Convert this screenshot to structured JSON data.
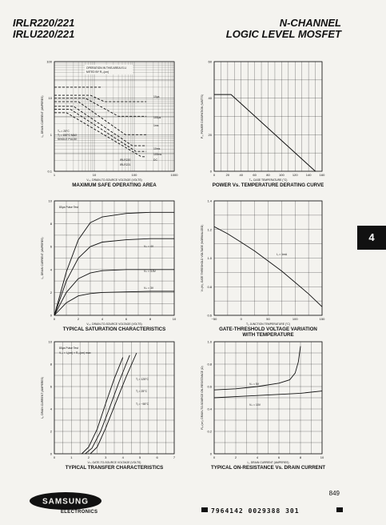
{
  "header": {
    "part_line1": "IRLR220/221",
    "part_line2": "IRLU220/221",
    "title_line1": "N-CHANNEL",
    "title_line2": "LOGIC LEVEL MOSFET"
  },
  "section_tab": "4",
  "page_number": "849",
  "footer": {
    "brand": "SAMSUNG",
    "division": "ELECTRONICS",
    "code": "7964142 0029388 301"
  },
  "colors": {
    "ink": "#111111",
    "paper": "#f4f3ef",
    "tab": "#111111"
  },
  "charts": {
    "soa": {
      "caption": "MAXIMUM SAFE OPERATING AREA",
      "xlabel": "V₀ₛ, DRAIN-TO-SOURCE VOLTAGE (VOLTS)",
      "ylabel": "I₀, DRAIN CURRENT (AMPERES)",
      "annotations": {
        "region": "OPERATION IN THIS AREA IS LIMITED BY R₀ₛ(on)",
        "conditions": [
          "Tₐ = 25°C",
          "Tⱼ = 150°C MAX",
          "SINGLE PULSE"
        ],
        "pulses": [
          "10μs",
          "100μs",
          "1ms",
          "10ms",
          "100ms",
          "DC"
        ],
        "parts": [
          "IRLR220",
          "IRLR221"
        ]
      }
    },
    "derating": {
      "caption": "POWER Vs. TEMPERATURE DERATING CURVE",
      "xlabel": "Tₐ, CASE TEMPERATURE (°C)",
      "ylabel": "P₀, POWER DISSIPATION (WATTS)"
    },
    "saturation": {
      "caption": "TYPICAL SATURATION CHARACTERISTICS",
      "xlabel": "V₀ₛ, DRAIN-TO-SOURCE VOLTAGE (VOLTS)",
      "ylabel": "I₀, DRAIN CURRENT (AMPERES)",
      "pulse_note": "80μs Pulse Test",
      "curve_labels": [
        "Vₗₛ = 4V",
        "Vₗₛ = 3.5V",
        "Vₗₛ = 3V"
      ]
    },
    "threshold": {
      "caption_line1": "GATE-THRESHOLD VOLTAGE VARIATION",
      "caption_line2": "WITH TEMPERATURE",
      "xlabel": "Tⱼ, JUNCTION TEMPERATURE (°C)",
      "ylabel": "Vₗₛ(th), GATE THRESHOLD VOLTAGE (NORMALIZED)",
      "curve_label": "I₀ = 1mA"
    },
    "transfer": {
      "caption": "TYPICAL TRANSFER CHARACTERISTICS",
      "xlabel": "Vₗₛ, GATE-TO-SOURCE VOLTAGE (VOLTS)",
      "ylabel": "I₀, DRAIN CURRENT (AMPERES)",
      "notes": [
        "80μs Pulse Test",
        "V₀ₛ = I₀(on) × R₀ₛ(on) max"
      ],
      "curve_labels": [
        "Tⱼ = 125°C",
        "Tⱼ = 25°C",
        "Tⱼ = −55°C"
      ]
    },
    "onres": {
      "caption": "TYPICAL ON-RESISTANCE Vs. DRAIN CURRENT",
      "xlabel": "I₀, DRAIN CURRENT (AMPERES)",
      "ylabel": "R₀ₛ(on), DRAIN-TO-SOURCE ON-RESISTANCE (Ω)",
      "curve_labels": [
        "Vₗₛ = 5V",
        "Vₗₛ = 10V"
      ]
    }
  },
  "chart_data": [
    {
      "type": "line",
      "id": "soa",
      "xscale": "log",
      "yscale": "log",
      "xlim": [
        1,
        1000
      ],
      "ylim": [
        0.1,
        100
      ],
      "xticks": [
        "1",
        "10",
        "100",
        "1000"
      ],
      "yticks": [
        "0.1",
        "1",
        "10",
        "100"
      ],
      "series": [
        {
          "name": "10μs",
          "x": [
            1,
            8,
            18,
            200
          ],
          "y": [
            12,
            12,
            8,
            8
          ]
        },
        {
          "name": "100μs",
          "x": [
            1,
            6,
            40,
            200
          ],
          "y": [
            10,
            10,
            3.2,
            3.2
          ]
        },
        {
          "name": "1ms",
          "x": [
            1,
            4,
            60,
            200
          ],
          "y": [
            8,
            8,
            1,
            1
          ]
        },
        {
          "name": "10ms",
          "x": [
            1,
            3,
            90,
            200
          ],
          "y": [
            6,
            6,
            0.5,
            0.5
          ]
        },
        {
          "name": "100ms",
          "x": [
            1,
            2.5,
            110,
            200
          ],
          "y": [
            5,
            5,
            0.35,
            0.35
          ]
        },
        {
          "name": "DC",
          "x": [
            1,
            2,
            150,
            200
          ],
          "y": [
            4,
            4,
            0.25,
            0.25
          ]
        }
      ]
    },
    {
      "type": "line",
      "id": "derating",
      "xlim": [
        0,
        160
      ],
      "ylim": [
        0,
        60
      ],
      "xticks": [
        "0",
        "20",
        "40",
        "60",
        "80",
        "100",
        "120",
        "140",
        "160"
      ],
      "yticks": [
        "0",
        "20",
        "40",
        "60"
      ],
      "series": [
        {
          "x": [
            0,
            20,
            25,
            150
          ],
          "y": [
            42,
            42,
            42,
            0
          ]
        }
      ]
    },
    {
      "type": "line",
      "id": "saturation",
      "xlim": [
        0,
        10
      ],
      "ylim": [
        0,
        10
      ],
      "xticks": [
        "0",
        "2",
        "4",
        "6",
        "8",
        "10"
      ],
      "yticks": [
        "0",
        "2",
        "4",
        "6",
        "8",
        "10"
      ],
      "series": [
        {
          "name": "5V",
          "x": [
            0,
            1,
            2,
            3,
            4,
            6,
            8,
            10
          ],
          "y": [
            0,
            3.8,
            6.6,
            8.1,
            8.6,
            8.9,
            9.0,
            9.0
          ]
        },
        {
          "name": "4V",
          "x": [
            0,
            1,
            2,
            3,
            4,
            6,
            8,
            10
          ],
          "y": [
            0,
            3.0,
            5.0,
            6.0,
            6.4,
            6.6,
            6.7,
            6.7
          ]
        },
        {
          "name": "3.5V",
          "x": [
            0,
            1,
            2,
            3,
            4,
            6,
            8,
            10
          ],
          "y": [
            0,
            2.0,
            3.2,
            3.7,
            3.9,
            4.0,
            4.0,
            4.0
          ]
        },
        {
          "name": "3V",
          "x": [
            0,
            1,
            2,
            3,
            4,
            6,
            8,
            10
          ],
          "y": [
            0,
            1.1,
            1.7,
            1.9,
            2.0,
            2.05,
            2.1,
            2.1
          ]
        }
      ]
    },
    {
      "type": "line",
      "id": "threshold",
      "xlim": [
        -50,
        150
      ],
      "ylim": [
        0.6,
        1.4
      ],
      "xticks": [
        "−50",
        "0",
        "50",
        "100",
        "150"
      ],
      "yticks": [
        "0.6",
        "0.8",
        "1.0",
        "1.2",
        "1.4"
      ],
      "series": [
        {
          "x": [
            -50,
            -25,
            0,
            25,
            50,
            75,
            100,
            125,
            150
          ],
          "y": [
            1.22,
            1.17,
            1.11,
            1.05,
            0.98,
            0.91,
            0.83,
            0.75,
            0.66
          ]
        }
      ]
    },
    {
      "type": "line",
      "id": "transfer",
      "xlim": [
        0,
        7
      ],
      "ylim": [
        0,
        10
      ],
      "xticks": [
        "0",
        "1",
        "2",
        "3",
        "4",
        "5",
        "6",
        "7"
      ],
      "yticks": [
        "0",
        "2",
        "4",
        "6",
        "8",
        "10"
      ],
      "series": [
        {
          "name": "125°C",
          "x": [
            1.6,
            2.0,
            2.5,
            3.0,
            3.5,
            4.0
          ],
          "y": [
            0,
            0.6,
            2.2,
            4.5,
            6.7,
            8.6
          ]
        },
        {
          "name": "25°C",
          "x": [
            1.8,
            2.2,
            2.7,
            3.2,
            3.8,
            4.4
          ],
          "y": [
            0,
            0.5,
            2.0,
            4.0,
            6.5,
            8.8
          ]
        },
        {
          "name": "−55°C",
          "x": [
            2.1,
            2.5,
            3.0,
            3.6,
            4.2,
            4.8
          ],
          "y": [
            0,
            0.6,
            2.3,
            4.6,
            6.9,
            9.0
          ]
        }
      ]
    },
    {
      "type": "line",
      "id": "onres",
      "xlim": [
        0,
        10
      ],
      "ylim": [
        0,
        1.0
      ],
      "xticks": [
        "0",
        "2",
        "4",
        "6",
        "8",
        "10"
      ],
      "yticks": [
        "0",
        "0.2",
        "0.4",
        "0.6",
        "0.8",
        "1.0"
      ],
      "series": [
        {
          "name": "5V",
          "x": [
            0,
            2,
            4,
            6,
            7,
            7.5,
            7.8,
            8.0
          ],
          "y": [
            0.57,
            0.58,
            0.6,
            0.63,
            0.66,
            0.72,
            0.82,
            0.96
          ]
        },
        {
          "name": "10V",
          "x": [
            0,
            2,
            4,
            6,
            8,
            10
          ],
          "y": [
            0.5,
            0.51,
            0.52,
            0.53,
            0.54,
            0.56
          ]
        }
      ]
    }
  ]
}
